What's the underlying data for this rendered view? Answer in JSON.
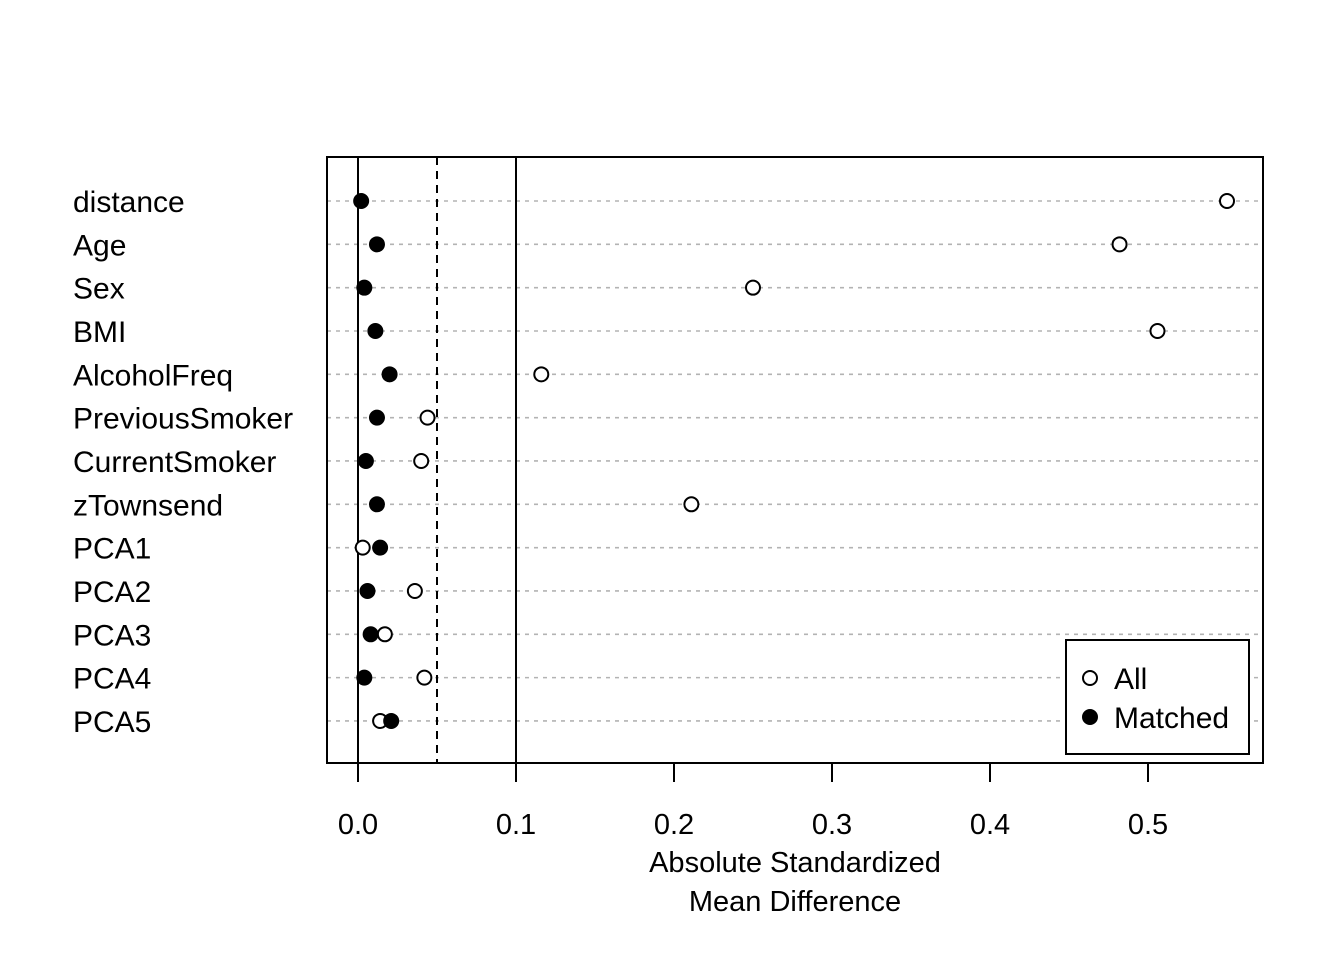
{
  "chart_data": {
    "type": "scatter",
    "subtype": "dotplot",
    "title": "",
    "xlabel_lines": [
      "Absolute Standardized",
      "Mean Difference"
    ],
    "ylabel": "",
    "xlim": [
      -0.02,
      0.57
    ],
    "xticks": [
      0.0,
      0.1,
      0.2,
      0.3,
      0.4,
      0.5
    ],
    "xtick_labels": [
      "0.0",
      "0.1",
      "0.2",
      "0.3",
      "0.4",
      "0.5"
    ],
    "reference_lines": [
      {
        "x": 0.0,
        "style": "solid"
      },
      {
        "x": 0.05,
        "style": "dashed"
      },
      {
        "x": 0.1,
        "style": "solid"
      }
    ],
    "grid": "horizontal dotted",
    "categories": [
      "distance",
      "Age",
      "Sex",
      "BMI",
      "AlcoholFreq",
      "PreviousSmoker",
      "CurrentSmoker",
      "zTownsend",
      "PCA1",
      "PCA2",
      "PCA3",
      "PCA4",
      "PCA5"
    ],
    "series": [
      {
        "name": "All",
        "marker": "open-circle",
        "values": [
          0.55,
          0.482,
          0.25,
          0.506,
          0.116,
          0.044,
          0.04,
          0.211,
          0.003,
          0.036,
          0.017,
          0.042,
          0.014
        ]
      },
      {
        "name": "Matched",
        "marker": "filled-circle",
        "values": [
          0.002,
          0.012,
          0.004,
          0.011,
          0.02,
          0.012,
          0.005,
          0.012,
          0.014,
          0.006,
          0.008,
          0.004,
          0.021
        ]
      }
    ],
    "legend": {
      "position": "bottom-right",
      "entries": [
        "All",
        "Matched"
      ]
    }
  }
}
